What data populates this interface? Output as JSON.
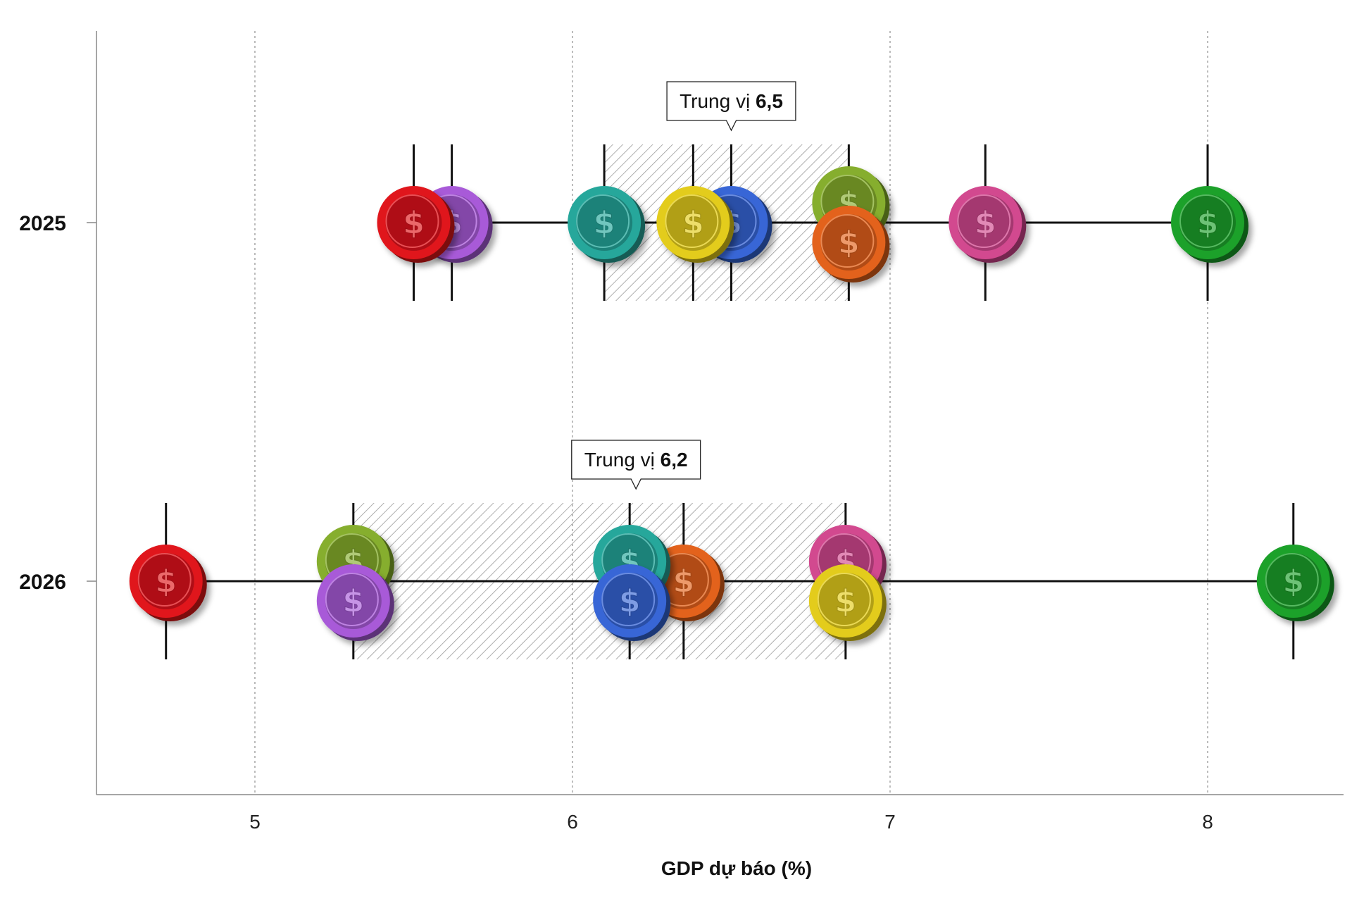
{
  "chart_data": {
    "type": "scatter",
    "xlabel": "GDP dự báo (%)",
    "xlim": [
      4.5,
      8.42
    ],
    "x_ticks": [
      5,
      6,
      7,
      8
    ],
    "x_tick_labels": [
      "5",
      "6",
      "7",
      "8"
    ],
    "categories": [
      "2025",
      "2026"
    ],
    "grid": "vertical-dotted",
    "rows": [
      {
        "category": "2025",
        "median": 6.5,
        "median_label_prefix": "Trung vị",
        "median_label_value": "6,5",
        "min": 5.5,
        "max": 8.0,
        "q1": 6.1,
        "q3": 6.87,
        "points": [
          {
            "value": 5.62,
            "color": "purple"
          },
          {
            "value": 5.5,
            "color": "red"
          },
          {
            "value": 6.1,
            "color": "teal"
          },
          {
            "value": 6.5,
            "color": "blue"
          },
          {
            "value": 6.38,
            "color": "yellow"
          },
          {
            "value": 6.87,
            "color": "lime",
            "offset": "up"
          },
          {
            "value": 6.87,
            "color": "orange",
            "offset": "down"
          },
          {
            "value": 7.3,
            "color": "pink"
          },
          {
            "value": 8.0,
            "color": "green"
          }
        ]
      },
      {
        "category": "2026",
        "median": 6.2,
        "median_label_prefix": "Trung vị",
        "median_label_value": "6,2",
        "min": 4.72,
        "max": 8.27,
        "q1": 5.31,
        "q3": 6.86,
        "points": [
          {
            "value": 4.72,
            "color": "red"
          },
          {
            "value": 5.31,
            "color": "lime",
            "offset": "up"
          },
          {
            "value": 5.31,
            "color": "purple",
            "offset": "down"
          },
          {
            "value": 6.35,
            "color": "orange"
          },
          {
            "value": 6.18,
            "color": "teal",
            "offset": "up"
          },
          {
            "value": 6.18,
            "color": "blue",
            "offset": "down"
          },
          {
            "value": 6.86,
            "color": "pink",
            "offset": "up"
          },
          {
            "value": 6.86,
            "color": "yellow",
            "offset": "down"
          },
          {
            "value": 8.27,
            "color": "green"
          }
        ]
      }
    ]
  },
  "coin_colors": {
    "red": "#e0161c",
    "purple": "#a85ad8",
    "teal": "#25a79b",
    "blue": "#3866d6",
    "yellow": "#e3cc1c",
    "lime": "#86ae2e",
    "orange": "#e3621a",
    "pink": "#d2498f",
    "green": "#1ea12c"
  },
  "icons": {
    "coin": "dollar-coin-icon"
  },
  "colors": {
    "range_line": "#111111",
    "iqr_hatch": "#9a9a9a",
    "grid": "#999999",
    "axis": "#888888"
  }
}
